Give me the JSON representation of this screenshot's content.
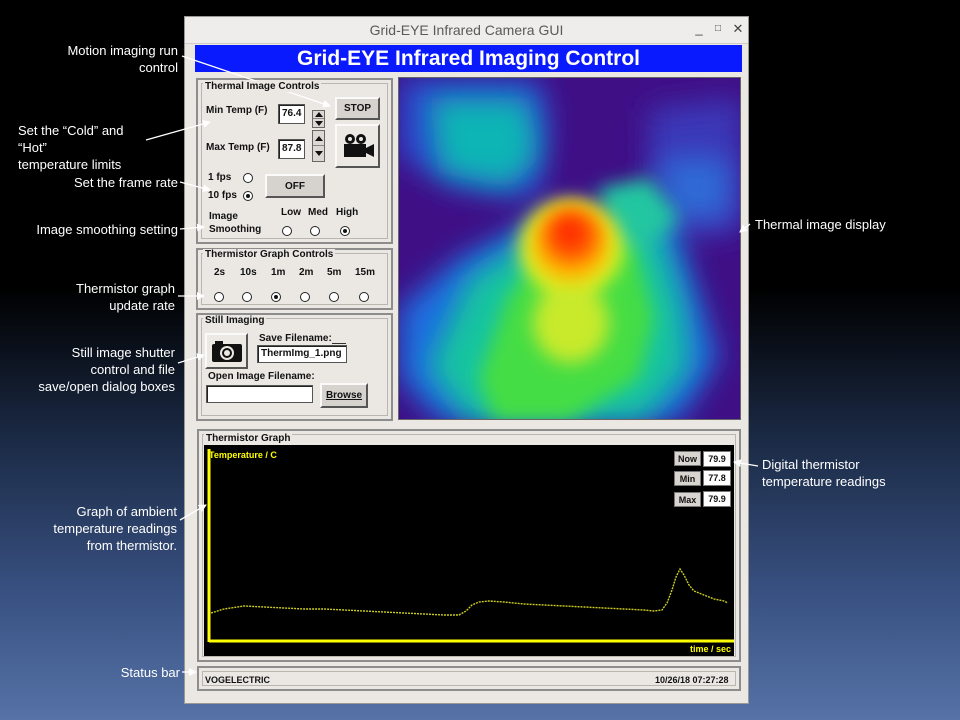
{
  "callouts": {
    "motion": [
      "Motion imaging run",
      "control"
    ],
    "limits": [
      "Set the “Cold” and “Hot”",
      "temperature limits"
    ],
    "framerate": [
      "Set the frame rate"
    ],
    "smoothing": [
      "Image smoothing setting"
    ],
    "graphrate": [
      "Thermistor graph",
      "update rate"
    ],
    "still": [
      "Still image shutter",
      "control and file",
      "save/open dialog boxes"
    ],
    "graph": [
      "Graph of ambient",
      "temperature readings",
      "from thermistor."
    ],
    "statusbar": [
      "Status bar"
    ],
    "display": [
      "Thermal image display"
    ],
    "digital": [
      "Digital thermistor",
      "temperature readings"
    ]
  },
  "window": {
    "title": "Grid-EYE Infrared Camera GUI",
    "minimize": "_",
    "maximize": "□",
    "close": "✕"
  },
  "banner": "Grid-EYE Infrared Imaging Control",
  "thermal_controls": {
    "label": "Thermal Image Controls",
    "min_label": "Min Temp (F)",
    "min_value": "76.4",
    "max_label": "Max Temp (F)",
    "max_value": "87.8",
    "stop_label": "STOP",
    "camera_icon": "movie-camera-icon",
    "fps_options": [
      "1 fps",
      "10 fps"
    ],
    "fps_selected": 1,
    "off_label": "OFF",
    "smoothing_label": [
      "Image",
      "Smoothing"
    ],
    "smoothing_options": [
      "Low",
      "Med",
      "High"
    ],
    "smoothing_selected": 2
  },
  "graph_controls": {
    "label": "Thermistor Graph Controls",
    "rates": [
      "2s",
      "10s",
      "1m",
      "2m",
      "5m",
      "15m"
    ],
    "selected": 2
  },
  "still_imaging": {
    "label": "Still Imaging",
    "save_label": "Save Filename:",
    "save_value": "ThermImg_1.png",
    "open_label": "Open Image Filename:",
    "open_value": "",
    "browse_label": "Browse",
    "shutter_icon": "still-camera-icon"
  },
  "thermistor_graph": {
    "label": "Thermistor Graph",
    "y_label": "Temperature / C",
    "x_label": "time / sec",
    "readouts": [
      {
        "label": "Now",
        "value": "79.9"
      },
      {
        "label": "Min",
        "value": "77.8"
      },
      {
        "label": "Max",
        "value": "79.9"
      }
    ]
  },
  "status": {
    "left": "VOGELECTRIC",
    "right": "10/26/18 07:27:28"
  },
  "colors": {
    "banner": "#0a1aff",
    "graph_trace": "#ffff00",
    "thermal_cold": "#3f0f86",
    "thermal_hot": "#ff2a00"
  }
}
